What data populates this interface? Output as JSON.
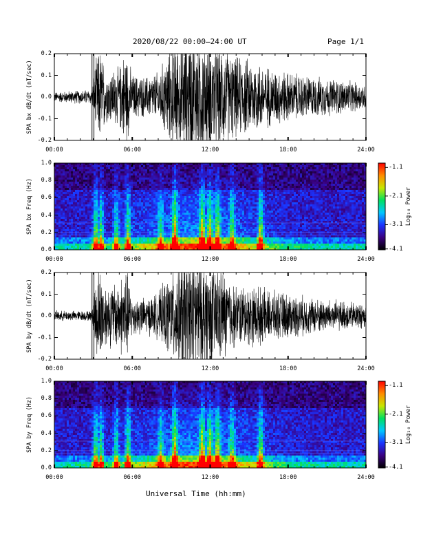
{
  "header": {
    "title": "2020/08/22  00:00–24:00 UT",
    "page": "Page 1/1"
  },
  "footer": {
    "xlabel": "Universal Time (hh:mm)"
  },
  "colorbar": {
    "label": "Log₁₀ Power",
    "ticks": [
      "-1.1",
      "-2.1",
      "-3.1",
      "-4.1"
    ],
    "colors": [
      "#000000",
      "#3a0080",
      "#1a33ff",
      "#00c8ff",
      "#00e060",
      "#c8e600",
      "#ff8c00",
      "#ff0000"
    ]
  },
  "chart_data": [
    {
      "type": "line",
      "title": "",
      "xlabel": "",
      "ylabel": "SPA bx dB/dt (nT/sec)",
      "xlim": [
        "00:00",
        "24:00"
      ],
      "ylim": [
        -0.2,
        0.2
      ],
      "xticks": [
        "00:00",
        "06:00",
        "12:00",
        "18:00",
        "24:00"
      ],
      "yticks": [
        "0.2",
        "0.1",
        "0.0",
        "-0.1",
        "-0.2"
      ],
      "grid": false,
      "series": [
        {
          "amplitude_envelope": {
            "hours": [
              0,
              2.9,
              3.1,
              3.5,
              4.0,
              5.0,
              5.5,
              6.0,
              7.0,
              8.0,
              9.0,
              10.0,
              11.0,
              12.0,
              13.0,
              14.0,
              15.5,
              16.5,
              18.0,
              20.0,
              22.0,
              24.0
            ],
            "amplitude": [
              0.02,
              0.03,
              0.12,
              0.2,
              0.1,
              0.12,
              0.2,
              0.09,
              0.08,
              0.1,
              0.2,
              0.25,
              0.25,
              0.22,
              0.2,
              0.16,
              0.15,
              0.12,
              0.1,
              0.08,
              0.07,
              0.05
            ]
          }
        }
      ]
    },
    {
      "type": "heatmap",
      "title": "",
      "xlabel": "",
      "ylabel": "SPA bx Freq (Hz)",
      "xlim": [
        "00:00",
        "24:00"
      ],
      "ylim": [
        0.0,
        1.0
      ],
      "xticks": [
        "00:00",
        "06:00",
        "12:00",
        "18:00",
        "24:00"
      ],
      "yticks": [
        "1.0",
        "0.8",
        "0.6",
        "0.4",
        "0.2",
        "0.0"
      ],
      "color_range": [
        -4.1,
        -1.1
      ],
      "bursts": [
        {
          "hour": 3.1,
          "strength": 0.75
        },
        {
          "hour": 3.5,
          "strength": 0.7
        },
        {
          "hour": 4.7,
          "strength": 0.6
        },
        {
          "hour": 5.6,
          "strength": 0.7
        },
        {
          "hour": 8.1,
          "strength": 0.55
        },
        {
          "hour": 9.2,
          "strength": 0.95
        },
        {
          "hour": 11.3,
          "strength": 0.85
        },
        {
          "hour": 11.9,
          "strength": 0.75
        },
        {
          "hour": 12.5,
          "strength": 0.7
        },
        {
          "hour": 13.6,
          "strength": 0.6
        },
        {
          "hour": 15.8,
          "strength": 0.8
        }
      ]
    },
    {
      "type": "line",
      "title": "",
      "xlabel": "",
      "ylabel": "SPA by dB/dt (nT/sec)",
      "xlim": [
        "00:00",
        "24:00"
      ],
      "ylim": [
        -0.2,
        0.2
      ],
      "xticks": [
        "00:00",
        "06:00",
        "12:00",
        "18:00",
        "24:00"
      ],
      "yticks": [
        "0.2",
        "0.1",
        "0.0",
        "-0.1",
        "-0.2"
      ],
      "grid": false,
      "series": [
        {
          "amplitude_envelope": {
            "hours": [
              0,
              2.9,
              3.1,
              3.5,
              4.0,
              5.0,
              5.5,
              6.0,
              7.0,
              8.0,
              9.0,
              10.0,
              11.0,
              12.0,
              13.0,
              14.0,
              15.5,
              16.5,
              18.0,
              20.0,
              22.0,
              24.0
            ],
            "amplitude": [
              0.02,
              0.02,
              0.14,
              0.2,
              0.12,
              0.14,
              0.2,
              0.08,
              0.07,
              0.09,
              0.18,
              0.25,
              0.25,
              0.22,
              0.18,
              0.12,
              0.12,
              0.1,
              0.09,
              0.07,
              0.06,
              0.05
            ]
          }
        }
      ]
    },
    {
      "type": "heatmap",
      "title": "",
      "xlabel": "",
      "ylabel": "SPA by Freq (Hz)",
      "xlim": [
        "00:00",
        "24:00"
      ],
      "ylim": [
        0.0,
        1.0
      ],
      "xticks": [
        "00:00",
        "06:00",
        "12:00",
        "18:00",
        "24:00"
      ],
      "yticks": [
        "1.0",
        "0.8",
        "0.6",
        "0.4",
        "0.2",
        "0.0"
      ],
      "color_range": [
        -4.1,
        -1.1
      ],
      "bursts": [
        {
          "hour": 3.1,
          "strength": 0.75
        },
        {
          "hour": 3.5,
          "strength": 0.7
        },
        {
          "hour": 4.7,
          "strength": 0.6
        },
        {
          "hour": 5.6,
          "strength": 0.7
        },
        {
          "hour": 8.1,
          "strength": 0.55
        },
        {
          "hour": 9.2,
          "strength": 0.95
        },
        {
          "hour": 11.3,
          "strength": 0.85
        },
        {
          "hour": 11.9,
          "strength": 0.8
        },
        {
          "hour": 12.5,
          "strength": 0.75
        },
        {
          "hour": 13.6,
          "strength": 0.6
        },
        {
          "hour": 15.8,
          "strength": 0.75
        }
      ]
    }
  ]
}
